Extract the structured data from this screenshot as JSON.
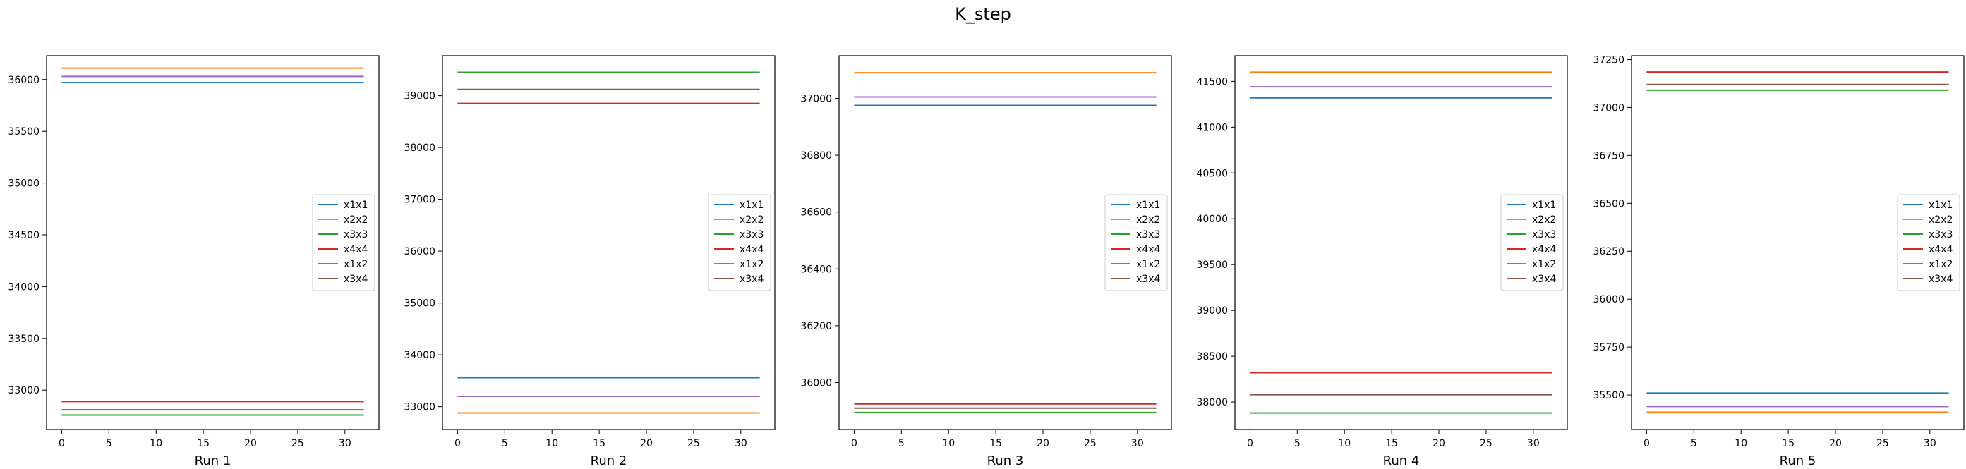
{
  "figure": {
    "title": "K_step"
  },
  "chart_data": [
    {
      "type": "line",
      "title": "",
      "xlabel": "Run 1",
      "ylabel": "",
      "xlim": [
        -1.6,
        33.6
      ],
      "ylim": [
        32620,
        36230
      ],
      "x_ticks": [
        0,
        5,
        10,
        15,
        20,
        25,
        30
      ],
      "y_ticks": [
        33000,
        33500,
        34000,
        34500,
        35000,
        35500,
        36000
      ],
      "x": [
        0,
        32
      ],
      "grid": false,
      "legend": "center-right",
      "series": [
        {
          "name": "x1x1",
          "color": "#1f77b4",
          "values": [
            35970,
            35970
          ]
        },
        {
          "name": "x2x2",
          "color": "#ff7f0e",
          "values": [
            36110,
            36110
          ]
        },
        {
          "name": "x3x3",
          "color": "#2ca02c",
          "values": [
            32760,
            32760
          ]
        },
        {
          "name": "x4x4",
          "color": "#d62728",
          "values": [
            32890,
            32890
          ]
        },
        {
          "name": "x1x2",
          "color": "#9467bd",
          "values": [
            36030,
            36030
          ]
        },
        {
          "name": "x3x4",
          "color": "#8c564b",
          "values": [
            32810,
            32810
          ]
        }
      ]
    },
    {
      "type": "line",
      "title": "",
      "xlabel": "Run 2",
      "ylabel": "",
      "xlim": [
        -1.6,
        33.6
      ],
      "ylim": [
        32560,
        39770
      ],
      "x_ticks": [
        0,
        5,
        10,
        15,
        20,
        25,
        30
      ],
      "y_ticks": [
        33000,
        34000,
        35000,
        36000,
        37000,
        38000,
        39000
      ],
      "x": [
        0,
        32
      ],
      "grid": false,
      "legend": "center-right",
      "series": [
        {
          "name": "x1x1",
          "color": "#1f77b4",
          "values": [
            33560,
            33560
          ]
        },
        {
          "name": "x2x2",
          "color": "#ff7f0e",
          "values": [
            32880,
            32880
          ]
        },
        {
          "name": "x3x3",
          "color": "#2ca02c",
          "values": [
            39450,
            39450
          ]
        },
        {
          "name": "x4x4",
          "color": "#d62728",
          "values": [
            38850,
            38850
          ]
        },
        {
          "name": "x1x2",
          "color": "#9467bd",
          "values": [
            33200,
            33200
          ]
        },
        {
          "name": "x3x4",
          "color": "#8c564b",
          "values": [
            39120,
            39120
          ]
        }
      ]
    },
    {
      "type": "line",
      "title": "",
      "xlabel": "Run 3",
      "ylabel": "",
      "xlim": [
        -1.6,
        33.6
      ],
      "ylim": [
        35835,
        37150
      ],
      "x_ticks": [
        0,
        5,
        10,
        15,
        20,
        25,
        30
      ],
      "y_ticks": [
        36000,
        36200,
        36400,
        36600,
        36800,
        37000
      ],
      "x": [
        0,
        32
      ],
      "grid": false,
      "legend": "center-right",
      "series": [
        {
          "name": "x1x1",
          "color": "#1f77b4",
          "values": [
            36975,
            36975
          ]
        },
        {
          "name": "x2x2",
          "color": "#ff7f0e",
          "values": [
            37090,
            37090
          ]
        },
        {
          "name": "x3x3",
          "color": "#2ca02c",
          "values": [
            35895,
            35895
          ]
        },
        {
          "name": "x4x4",
          "color": "#d62728",
          "values": [
            35925,
            35925
          ]
        },
        {
          "name": "x1x2",
          "color": "#9467bd",
          "values": [
            37005,
            37005
          ]
        },
        {
          "name": "x3x4",
          "color": "#8c564b",
          "values": [
            35910,
            35910
          ]
        }
      ]
    },
    {
      "type": "line",
      "title": "",
      "xlabel": "Run 4",
      "ylabel": "",
      "xlim": [
        -1.6,
        33.6
      ],
      "ylim": [
        37700,
        41780
      ],
      "x_ticks": [
        0,
        5,
        10,
        15,
        20,
        25,
        30
      ],
      "y_ticks": [
        38000,
        38500,
        39000,
        39500,
        40000,
        40500,
        41000,
        41500
      ],
      "x": [
        0,
        32
      ],
      "grid": false,
      "legend": "center-right",
      "series": [
        {
          "name": "x1x1",
          "color": "#1f77b4",
          "values": [
            41320,
            41320
          ]
        },
        {
          "name": "x2x2",
          "color": "#ff7f0e",
          "values": [
            41600,
            41600
          ]
        },
        {
          "name": "x3x3",
          "color": "#2ca02c",
          "values": [
            37880,
            37880
          ]
        },
        {
          "name": "x4x4",
          "color": "#d62728",
          "values": [
            38320,
            38320
          ]
        },
        {
          "name": "x1x2",
          "color": "#9467bd",
          "values": [
            41440,
            41440
          ]
        },
        {
          "name": "x3x4",
          "color": "#8c564b",
          "values": [
            38080,
            38080
          ]
        }
      ]
    },
    {
      "type": "line",
      "title": "",
      "xlabel": "Run 5",
      "ylabel": "",
      "xlim": [
        -1.6,
        33.6
      ],
      "ylim": [
        35320,
        37270
      ],
      "x_ticks": [
        0,
        5,
        10,
        15,
        20,
        25,
        30
      ],
      "y_ticks": [
        35500,
        35750,
        36000,
        36250,
        36500,
        36750,
        37000,
        37250
      ],
      "x": [
        0,
        32
      ],
      "grid": false,
      "legend": "center-right",
      "series": [
        {
          "name": "x1x1",
          "color": "#1f77b4",
          "values": [
            35510,
            35510
          ]
        },
        {
          "name": "x2x2",
          "color": "#ff7f0e",
          "values": [
            35410,
            35410
          ]
        },
        {
          "name": "x3x3",
          "color": "#2ca02c",
          "values": [
            37090,
            37090
          ]
        },
        {
          "name": "x4x4",
          "color": "#d62728",
          "values": [
            37185,
            37185
          ]
        },
        {
          "name": "x1x2",
          "color": "#9467bd",
          "values": [
            35440,
            35440
          ]
        },
        {
          "name": "x3x4",
          "color": "#8c564b",
          "values": [
            37120,
            37120
          ]
        }
      ]
    }
  ]
}
